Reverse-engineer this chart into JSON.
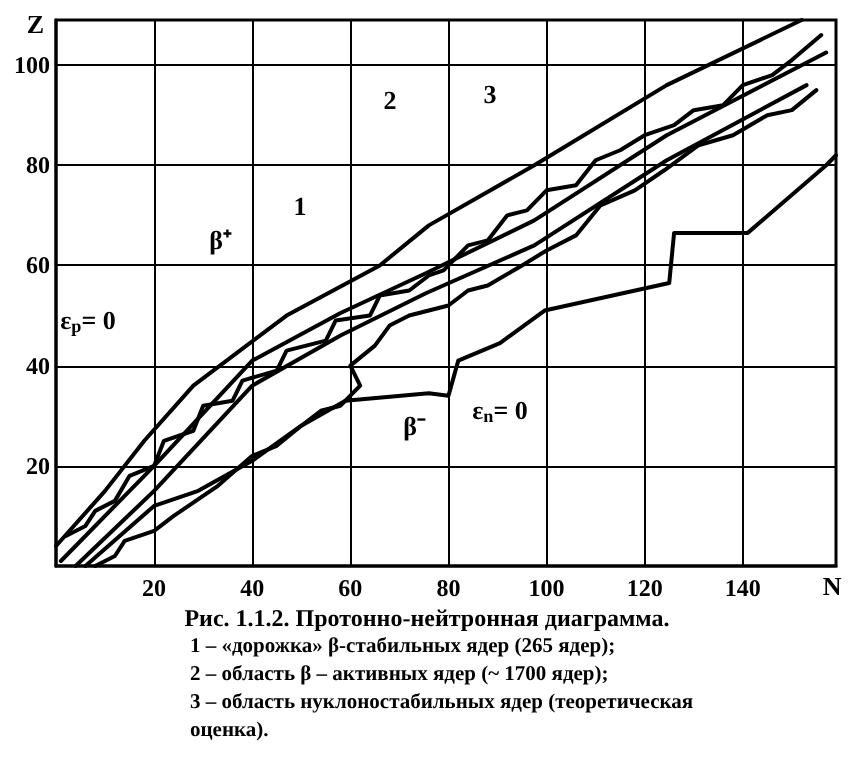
{
  "chart_data": {
    "type": "line",
    "title": "Рис. 1.1.2. Протонно-нейтронная диаграмма.",
    "xlabel": "N",
    "ylabel": "Z",
    "xlim": [
      0,
      159
    ],
    "ylim": [
      0,
      109
    ],
    "xticks": [
      20,
      40,
      60,
      80,
      100,
      120,
      140
    ],
    "yticks": [
      20,
      40,
      60,
      80,
      100
    ],
    "grid": true,
    "marker": "none",
    "line_style": "solid",
    "series": [
      {
        "color": "#000000",
        "x": [
          0,
          10,
          18,
          28,
          47,
          66,
          76,
          97.5,
          124.5,
          152
        ],
        "values": [
          4,
          15,
          25,
          36,
          50,
          60,
          68,
          80,
          96,
          109
        ]
      },
      {
        "color": "#000000",
        "x": [
          2,
          6,
          8,
          12,
          15,
          20,
          22,
          28,
          30,
          36,
          38,
          45,
          47,
          55,
          57,
          64,
          66,
          72,
          76,
          79,
          84,
          88,
          92,
          96,
          100,
          106,
          110,
          115,
          120,
          126,
          130,
          136,
          140,
          146,
          150,
          156
        ],
        "values": [
          6,
          8,
          11,
          13,
          18,
          20,
          25,
          27,
          32,
          33,
          37,
          39,
          43,
          45,
          49,
          50,
          54,
          55,
          58,
          59,
          64,
          65,
          70,
          71,
          75,
          76,
          81,
          83,
          86,
          88,
          91,
          92,
          96,
          98,
          101,
          106
        ]
      },
      {
        "color": "#000000",
        "x": [
          1,
          20,
          40,
          58,
          75.5,
          97.5,
          124.5,
          157
        ],
        "values": [
          1,
          20,
          41,
          50.5,
          58.5,
          69,
          86,
          102.5
        ]
      },
      {
        "color": "#000000",
        "x": [
          4,
          20,
          40,
          58,
          75.5,
          97.5,
          124.5,
          153
        ],
        "values": [
          0,
          15,
          36,
          46,
          54.5,
          64,
          81,
          96
        ]
      },
      {
        "color": "#000000",
        "x": [
          8,
          12,
          14,
          20,
          24,
          30,
          33,
          40,
          45,
          50,
          54,
          58,
          62,
          60,
          65,
          68,
          72,
          80,
          84,
          88,
          95,
          100,
          106,
          111,
          118,
          124,
          131,
          138,
          145,
          150,
          155
        ],
        "values": [
          0,
          2,
          5,
          7,
          10,
          14,
          16,
          22,
          24,
          28,
          31,
          32,
          36,
          40,
          44,
          48,
          50,
          52,
          55,
          56,
          60,
          63,
          66,
          72,
          75,
          79,
          84,
          86,
          90,
          91,
          95
        ]
      },
      {
        "color": "#000000",
        "x": [
          6,
          20,
          29,
          40,
          50,
          59,
          76,
          80,
          82,
          90.5,
          99.6,
          125,
          126,
          141,
          157,
          159
        ],
        "values": [
          0,
          12,
          15,
          21,
          28,
          33,
          34.5,
          34,
          41,
          44.5,
          51,
          56.5,
          66.5,
          66.5,
          80,
          82
        ]
      }
    ],
    "annotations": [
      "1",
      "2",
      "3",
      "β⁺",
      "β⁻",
      "ε$_{p}$= 0",
      "ε$_{n}$= 0",
      "1 – «дорожка» β-стабильных ядер (265 ядер);",
      "2 – область β – активных ядер (~ 1700 ядер);",
      "3 – область нуклоностабильных ядер (теоретическая оценка)."
    ]
  }
}
